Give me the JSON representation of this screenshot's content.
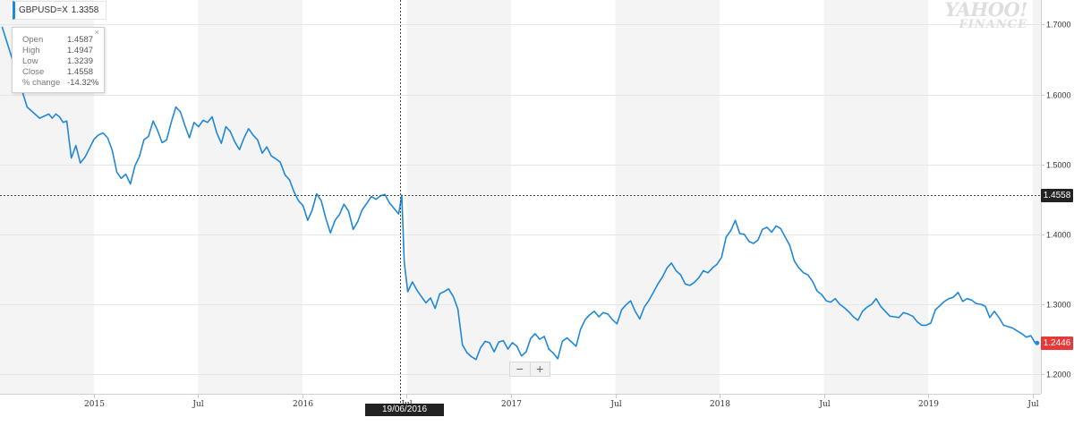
{
  "legend": {
    "ticker": "GBPUSD=X",
    "value": "1.3358"
  },
  "tooltip": {
    "close_symbol": "×",
    "rows": [
      {
        "label": "Open",
        "value": "1.4587"
      },
      {
        "label": "High",
        "value": "1.4947"
      },
      {
        "label": "Low",
        "value": "1.3239"
      },
      {
        "label": "Close",
        "value": "1.4558"
      },
      {
        "label": "% change",
        "value": "-14.32%"
      }
    ]
  },
  "watermark": {
    "line1": "YAHOO!",
    "line2": "FINANCE"
  },
  "crosshair": {
    "date_label": "19/06/2016",
    "price_label": "1.4558",
    "price": 1.4558,
    "x": 2016.47
  },
  "last_price": {
    "label": "1.2446",
    "value": 1.2446,
    "color": "#e8393a"
  },
  "zoom": {
    "minus": "−",
    "plus": "+"
  },
  "colors": {
    "line": "#1f88d8",
    "band": "#f4f4f4",
    "crosshair": "#444444"
  },
  "chart_data": {
    "type": "line",
    "title": "",
    "xlabel": "",
    "ylabel": "",
    "xlim": [
      2014.55,
      2019.54
    ],
    "ylim": [
      1.172,
      1.735
    ],
    "y_axis_side": "right",
    "grid": true,
    "x_ticks": [
      {
        "label": "2015",
        "x": 2015.0
      },
      {
        "label": "Jul",
        "x": 2015.5
      },
      {
        "label": "2016",
        "x": 2016.0
      },
      {
        "label": "Jul",
        "x": 2016.5
      },
      {
        "label": "2017",
        "x": 2017.0
      },
      {
        "label": "Jul",
        "x": 2017.5
      },
      {
        "label": "2018",
        "x": 2018.0
      },
      {
        "label": "Jul",
        "x": 2018.5
      },
      {
        "label": "2019",
        "x": 2019.0
      },
      {
        "label": "Jul",
        "x": 2019.5
      }
    ],
    "y_ticks": [
      {
        "label": "1.2000",
        "y": 1.2
      },
      {
        "label": "1.3000",
        "y": 1.3
      },
      {
        "label": "1.4000",
        "y": 1.4
      },
      {
        "label": "1.5000",
        "y": 1.5
      },
      {
        "label": "1.6000",
        "y": 1.6
      },
      {
        "label": "1.7000",
        "y": 1.7
      }
    ],
    "bands": [
      [
        2014.55,
        2015.0
      ],
      [
        2015.5,
        2016.0
      ],
      [
        2016.5,
        2017.0
      ],
      [
        2017.5,
        2018.0
      ],
      [
        2018.5,
        2019.0
      ],
      [
        2019.5,
        2019.54
      ]
    ],
    "series": [
      {
        "x": [
          2014.56,
          2014.62,
          2014.68,
          2014.74,
          2014.784,
          2014.8,
          2014.818,
          2014.835,
          2014.853,
          2014.87,
          2014.892,
          2014.914,
          2014.935,
          2014.957,
          2014.979,
          2015.001,
          2015.022,
          2015.044,
          2015.066,
          2015.088,
          2015.11,
          2015.131,
          2015.153,
          2015.175,
          2015.197,
          2015.218,
          2015.24,
          2015.262,
          2015.284,
          2015.306,
          2015.327,
          2015.349,
          2015.371,
          2015.393,
          2015.415,
          2015.436,
          2015.458,
          2015.48,
          2015.502,
          2015.524,
          2015.545,
          2015.567,
          2015.589,
          2015.611,
          2015.633,
          2015.654,
          2015.676,
          2015.698,
          2015.72,
          2015.742,
          2015.763,
          2015.785,
          2015.807,
          2015.829,
          2015.851,
          2015.872,
          2015.894,
          2015.916,
          2015.938,
          2015.959,
          2015.981,
          2016.003,
          2016.025,
          2016.047,
          2016.068,
          2016.09,
          2016.112,
          2016.134,
          2016.156,
          2016.177,
          2016.199,
          2016.221,
          2016.243,
          2016.265,
          2016.286,
          2016.308,
          2016.33,
          2016.352,
          2016.374,
          2016.395,
          2016.417,
          2016.439,
          2016.461,
          2016.476,
          2016.488,
          2016.505,
          2016.527,
          2016.549,
          2016.57,
          2016.592,
          2016.614,
          2016.636,
          2016.658,
          2016.679,
          2016.701,
          2016.723,
          2016.745,
          2016.767,
          2016.788,
          2016.81,
          2016.832,
          2016.854,
          2016.876,
          2016.897,
          2016.919,
          2016.941,
          2016.963,
          2016.985,
          2017.006,
          2017.028,
          2017.05,
          2017.072,
          2017.094,
          2017.115,
          2017.137,
          2017.159,
          2017.181,
          2017.203,
          2017.224,
          2017.246,
          2017.268,
          2017.29,
          2017.312,
          2017.333,
          2017.355,
          2017.377,
          2017.399,
          2017.421,
          2017.442,
          2017.464,
          2017.486,
          2017.508,
          2017.53,
          2017.551,
          2017.573,
          2017.595,
          2017.617,
          2017.639,
          2017.66,
          2017.682,
          2017.704,
          2017.726,
          2017.748,
          2017.769,
          2017.791,
          2017.813,
          2017.835,
          2017.857,
          2017.878,
          2017.9,
          2017.922,
          2017.944,
          2017.966,
          2017.987,
          2018.009,
          2018.031,
          2018.053,
          2018.075,
          2018.096,
          2018.118,
          2018.14,
          2018.162,
          2018.184,
          2018.205,
          2018.227,
          2018.249,
          2018.271,
          2018.293,
          2018.314,
          2018.336,
          2018.358,
          2018.38,
          2018.402,
          2018.423,
          2018.445,
          2018.467,
          2018.489,
          2018.511,
          2018.532,
          2018.554,
          2018.576,
          2018.598,
          2018.62,
          2018.641,
          2018.663,
          2018.685,
          2018.707,
          2018.729,
          2018.75,
          2018.772,
          2018.794,
          2018.816,
          2018.838,
          2018.859,
          2018.881,
          2018.903,
          2018.925,
          2018.947,
          2018.968,
          2018.99,
          2019.012,
          2019.034,
          2019.056,
          2019.077,
          2019.099,
          2019.121,
          2019.143,
          2019.165,
          2019.186,
          2019.208,
          2019.23,
          2019.252,
          2019.274,
          2019.295,
          2019.317,
          2019.339,
          2019.361,
          2019.383,
          2019.404,
          2019.426,
          2019.448,
          2019.47,
          2019.492,
          2019.513,
          2019.522
        ],
        "values": [
          1.697,
          1.64,
          1.582,
          1.566,
          1.572,
          1.566,
          1.572,
          1.568,
          1.56,
          1.562,
          1.509,
          1.527,
          1.502,
          1.51,
          1.523,
          1.536,
          1.542,
          1.545,
          1.538,
          1.52,
          1.489,
          1.48,
          1.486,
          1.472,
          1.498,
          1.511,
          1.535,
          1.54,
          1.562,
          1.548,
          1.531,
          1.535,
          1.56,
          1.582,
          1.575,
          1.556,
          1.538,
          1.56,
          1.554,
          1.563,
          1.56,
          1.568,
          1.545,
          1.53,
          1.554,
          1.547,
          1.532,
          1.521,
          1.538,
          1.551,
          1.542,
          1.535,
          1.516,
          1.525,
          1.512,
          1.508,
          1.503,
          1.485,
          1.478,
          1.461,
          1.448,
          1.441,
          1.42,
          1.435,
          1.458,
          1.448,
          1.423,
          1.402,
          1.42,
          1.428,
          1.443,
          1.433,
          1.407,
          1.418,
          1.435,
          1.444,
          1.454,
          1.45,
          1.455,
          1.457,
          1.445,
          1.437,
          1.429,
          1.4558,
          1.36,
          1.318,
          1.332,
          1.32,
          1.311,
          1.302,
          1.309,
          1.294,
          1.315,
          1.318,
          1.322,
          1.311,
          1.293,
          1.242,
          1.231,
          1.225,
          1.221,
          1.238,
          1.247,
          1.245,
          1.232,
          1.246,
          1.248,
          1.236,
          1.245,
          1.24,
          1.226,
          1.232,
          1.251,
          1.258,
          1.25,
          1.254,
          1.236,
          1.23,
          1.222,
          1.247,
          1.252,
          1.246,
          1.24,
          1.264,
          1.278,
          1.285,
          1.29,
          1.282,
          1.288,
          1.286,
          1.278,
          1.272,
          1.292,
          1.299,
          1.305,
          1.29,
          1.279,
          1.296,
          1.305,
          1.317,
          1.329,
          1.339,
          1.352,
          1.359,
          1.348,
          1.342,
          1.329,
          1.327,
          1.331,
          1.338,
          1.348,
          1.345,
          1.352,
          1.357,
          1.367,
          1.396,
          1.405,
          1.42,
          1.401,
          1.4,
          1.39,
          1.387,
          1.392,
          1.407,
          1.41,
          1.403,
          1.412,
          1.408,
          1.396,
          1.384,
          1.362,
          1.352,
          1.345,
          1.342,
          1.333,
          1.319,
          1.314,
          1.305,
          1.303,
          1.308,
          1.3,
          1.295,
          1.289,
          1.282,
          1.277,
          1.29,
          1.296,
          1.3,
          1.308,
          1.297,
          1.29,
          1.283,
          1.282,
          1.281,
          1.288,
          1.286,
          1.283,
          1.275,
          1.27,
          1.27,
          1.273,
          1.292,
          1.298,
          1.304,
          1.308,
          1.31,
          1.317,
          1.304,
          1.308,
          1.306,
          1.301,
          1.3,
          1.297,
          1.281,
          1.29,
          1.281,
          1.27,
          1.268,
          1.266,
          1.262,
          1.258,
          1.253,
          1.255,
          1.2446,
          1.2446
        ]
      }
    ]
  }
}
